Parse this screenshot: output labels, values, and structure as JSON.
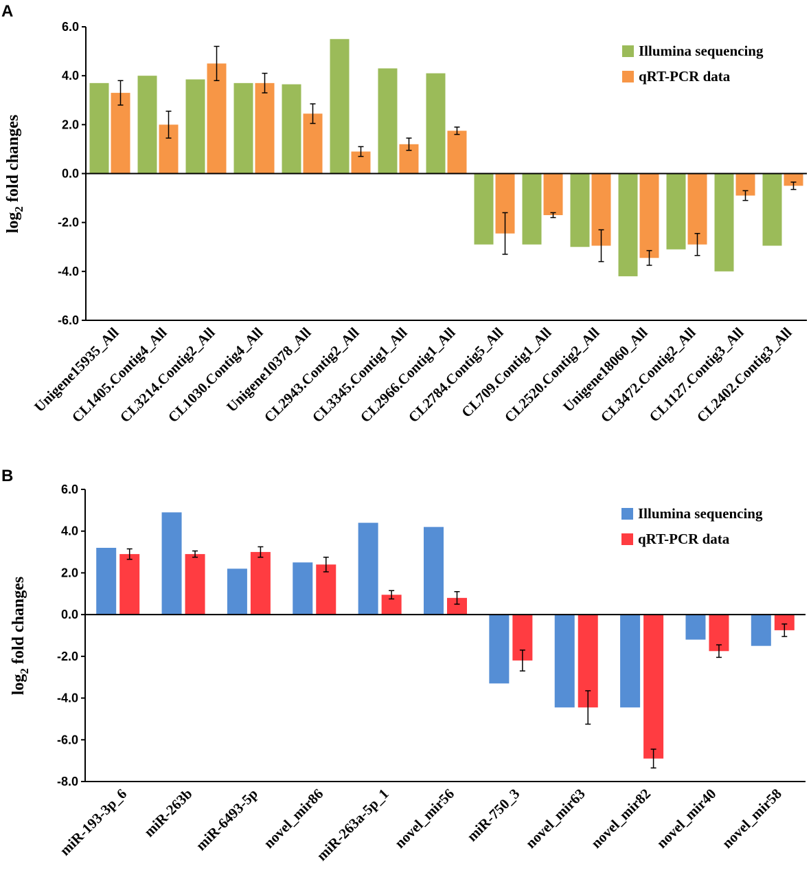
{
  "chart_data": [
    {
      "panel": "A",
      "type": "bar",
      "ylabel": "log2 fold changes",
      "ylabel_main": "log",
      "ylabel_sub": "2",
      "ylabel_rest": " fold changes",
      "ylim": [
        -6.0,
        6.0
      ],
      "yticks": [
        6.0,
        4.0,
        2.0,
        0.0,
        -2.0,
        -4.0,
        -6.0
      ],
      "yticklabels": [
        "6.0",
        "4.0",
        "2.0",
        "0.0",
        "-2.0",
        "-4.0",
        "-6.0"
      ],
      "legend_position": "top-right",
      "categories": [
        "Unigene15935_All",
        "CL1405.Contig4_All",
        "CL3214.Contig2_All",
        "CL1030.Contig4_All",
        "Unigene10378_All",
        "CL2943.Contig2_All",
        "CL3345.Contig1_All",
        "CL2966.Contig1_All",
        "CL2784.Contig5_All",
        "CL709.Contig1_All",
        "CL2520.Contig2_All",
        "Unigene18060_All",
        "CL3472.Contig2_All",
        "CL1127.Contig3_All",
        "CL2402.Contig3_All"
      ],
      "series": [
        {
          "name": "Illumina sequencing",
          "color": "#9bbb59",
          "values": [
            3.7,
            4.0,
            3.85,
            3.7,
            3.65,
            5.5,
            4.3,
            4.1,
            -2.9,
            -2.9,
            -3.0,
            -4.2,
            -3.1,
            -4.0,
            -2.95
          ]
        },
        {
          "name": "qRT-PCR data",
          "color": "#f79646",
          "values": [
            3.3,
            2.0,
            4.5,
            3.7,
            2.45,
            0.9,
            1.2,
            1.75,
            -2.45,
            -1.7,
            -2.95,
            -3.45,
            -2.9,
            -0.9,
            -0.5
          ],
          "errors": [
            0.5,
            0.55,
            0.7,
            0.4,
            0.4,
            0.2,
            0.25,
            0.15,
            0.85,
            0.1,
            0.65,
            0.3,
            0.45,
            0.2,
            0.15
          ]
        }
      ]
    },
    {
      "panel": "B",
      "type": "bar",
      "ylabel": "log2 fold changes",
      "ylabel_main": "log",
      "ylabel_sub": "2",
      "ylabel_rest": " fold changes",
      "ylim": [
        -8.0,
        6.0
      ],
      "yticks": [
        6.0,
        4.0,
        2.0,
        0.0,
        -2.0,
        -4.0,
        -6.0,
        -8.0
      ],
      "yticklabels": [
        "6.0",
        "4.0",
        "2.0",
        "0.0",
        "-2.0",
        "-4.0",
        "-6.0",
        "-8.0"
      ],
      "legend_position": "top-right",
      "categories": [
        "miR-193-3p_6",
        "miR-263b",
        "miR-6493-5p",
        "novel_mir86",
        "miR-263a-5p_1",
        "novel_mir56",
        "miR-750_3",
        "novel_mir63",
        "novel_mir82",
        "novel_mir40",
        "novel_mir58"
      ],
      "series": [
        {
          "name": "Illumina sequencing",
          "color": "#558ed5",
          "values": [
            3.2,
            4.9,
            2.2,
            2.5,
            4.4,
            4.2,
            -3.3,
            -4.45,
            -4.45,
            -1.2,
            -1.5
          ]
        },
        {
          "name": "qRT-PCR data",
          "color": "#ff3c41",
          "values": [
            2.9,
            2.9,
            3.0,
            2.4,
            0.95,
            0.8,
            -2.2,
            -4.45,
            -6.9,
            -1.75,
            -0.75
          ],
          "errors": [
            0.25,
            0.15,
            0.25,
            0.35,
            0.2,
            0.3,
            0.5,
            0.8,
            0.45,
            0.3,
            0.3
          ]
        }
      ]
    }
  ]
}
